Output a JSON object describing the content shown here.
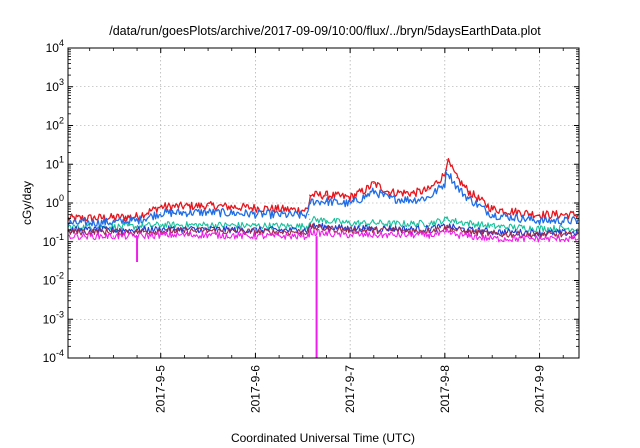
{
  "chart_data": {
    "type": "line",
    "title": "/data/run/goesPlots/archive/2017-09-09/10:00/flux/../bryn/5daysEarthData.plot",
    "xlabel": "Coordinated Universal Time (UTC)",
    "ylabel": "cGy/day",
    "x_range": [
      "2017-09-04 00:30",
      "2017-09-09 10:00"
    ],
    "x_ticks": [
      "2017-9-5",
      "2017-9-6",
      "2017-9-7",
      "2017-9-8",
      "2017-9-9"
    ],
    "y_scale": "log",
    "ylim": [
      0.0001,
      10000
    ],
    "y_ticks": [
      {
        "base": "10",
        "exp": "4"
      },
      {
        "base": "10",
        "exp": "3"
      },
      {
        "base": "10",
        "exp": "2"
      },
      {
        "base": "10",
        "exp": "1"
      },
      {
        "base": "10",
        "exp": "0"
      },
      {
        "base": "10",
        "exp": "-1"
      },
      {
        "base": "10",
        "exp": "-2"
      },
      {
        "base": "10",
        "exp": "-3"
      },
      {
        "base": "10",
        "exp": "-4"
      }
    ],
    "grid": true,
    "x": [
      "2017-09-04 00:30",
      "2017-09-04 12:00",
      "2017-09-04 18:00",
      "2017-09-05 00:00",
      "2017-09-05 12:00",
      "2017-09-06 00:00",
      "2017-09-06 12:00",
      "2017-09-06 13:30",
      "2017-09-06 13:45",
      "2017-09-06 18:00",
      "2017-09-07 00:00",
      "2017-09-07 04:00",
      "2017-09-07 06:00",
      "2017-09-07 10:00",
      "2017-09-07 16:00",
      "2017-09-07 20:00",
      "2017-09-08 00:00",
      "2017-09-08 00:30",
      "2017-09-08 03:00",
      "2017-09-08 06:00",
      "2017-09-08 12:00",
      "2017-09-09 00:00",
      "2017-09-09 10:00"
    ],
    "series": [
      {
        "color": "#e8151c",
        "values": [
          0.4,
          0.42,
          0.45,
          0.8,
          0.85,
          0.75,
          0.65,
          0.7,
          1.6,
          1.6,
          1.4,
          2.2,
          3.2,
          1.9,
          1.8,
          2.2,
          5.5,
          13.0,
          4.5,
          2.0,
          0.7,
          0.5,
          0.5
        ]
      },
      {
        "color": "#1f6ee8",
        "values": [
          0.3,
          0.32,
          0.35,
          0.55,
          0.58,
          0.52,
          0.48,
          0.5,
          1.1,
          1.1,
          0.95,
          1.5,
          2.0,
          1.3,
          1.2,
          1.4,
          3.2,
          7.0,
          2.6,
          1.3,
          0.5,
          0.35,
          0.35
        ]
      },
      {
        "color": "#16c19a",
        "values": [
          0.24,
          0.24,
          0.25,
          0.27,
          0.27,
          0.26,
          0.25,
          0.25,
          0.38,
          0.35,
          0.3,
          0.3,
          0.31,
          0.29,
          0.29,
          0.3,
          0.36,
          0.4,
          0.33,
          0.3,
          0.25,
          0.22,
          0.22
        ]
      },
      {
        "color": "#1b3bd8",
        "values": [
          0.2,
          0.2,
          0.2,
          0.21,
          0.21,
          0.2,
          0.2,
          0.2,
          0.26,
          0.24,
          0.22,
          0.22,
          0.22,
          0.22,
          0.21,
          0.22,
          0.24,
          0.26,
          0.22,
          0.2,
          0.18,
          0.17,
          0.17
        ]
      },
      {
        "color": "#a02848",
        "values": [
          0.18,
          0.18,
          0.18,
          0.19,
          0.19,
          0.18,
          0.18,
          0.18,
          0.24,
          0.22,
          0.2,
          0.2,
          0.2,
          0.2,
          0.19,
          0.2,
          0.22,
          0.24,
          0.2,
          0.18,
          0.16,
          0.15,
          0.15
        ]
      },
      {
        "color": "#ee1fe8",
        "values": [
          0.14,
          0.14,
          0.14,
          0.15,
          0.15,
          0.14,
          0.14,
          0.14,
          0.18,
          0.16,
          0.15,
          0.15,
          0.15,
          0.15,
          0.15,
          0.15,
          0.16,
          0.18,
          0.15,
          0.14,
          0.12,
          0.12,
          0.12
        ]
      }
    ],
    "annotations": [
      {
        "series": 5,
        "at": "2017-09-04 18:00",
        "value": 0.03
      },
      {
        "series": 5,
        "at": "2017-09-06 15:30",
        "value": 0.0001
      }
    ]
  }
}
